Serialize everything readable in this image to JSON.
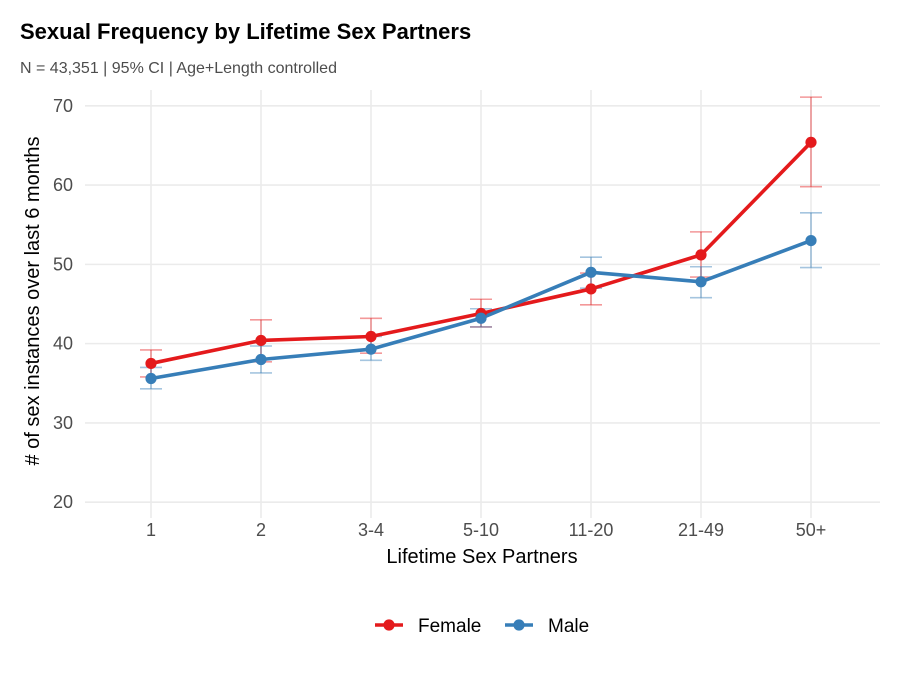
{
  "chart_data": {
    "type": "line",
    "title": "Sexual Frequency by Lifetime Sex Partners",
    "subtitle": "N = 43,351 | 95% CI | Age+Length controlled",
    "xlabel": "Lifetime Sex Partners",
    "ylabel": "# of sex instances over last 6 months",
    "categories": [
      "1",
      "2",
      "3-4",
      "5-10",
      "11-20",
      "21-49",
      "50+"
    ],
    "ylim": [
      18,
      72
    ],
    "yticks": [
      20,
      30,
      40,
      50,
      60,
      70
    ],
    "grid": true,
    "legend_position": "bottom",
    "series": [
      {
        "name": "Female",
        "color": "#e41a1c",
        "values": [
          37.5,
          40.4,
          40.9,
          43.8,
          46.9,
          51.2,
          65.4
        ],
        "ci_low": [
          35.8,
          37.7,
          38.8,
          42.1,
          44.9,
          48.4,
          59.8
        ],
        "ci_high": [
          39.2,
          43.0,
          43.2,
          45.6,
          48.9,
          54.1,
          71.1
        ]
      },
      {
        "name": "Male",
        "color": "#377eb8",
        "values": [
          35.6,
          38.0,
          39.3,
          43.2,
          49.0,
          47.8,
          53.0
        ],
        "ci_low": [
          34.3,
          36.3,
          37.9,
          42.1,
          47.0,
          45.8,
          49.6
        ],
        "ci_high": [
          37.0,
          39.7,
          40.9,
          44.4,
          50.9,
          49.7,
          56.5
        ]
      }
    ]
  }
}
